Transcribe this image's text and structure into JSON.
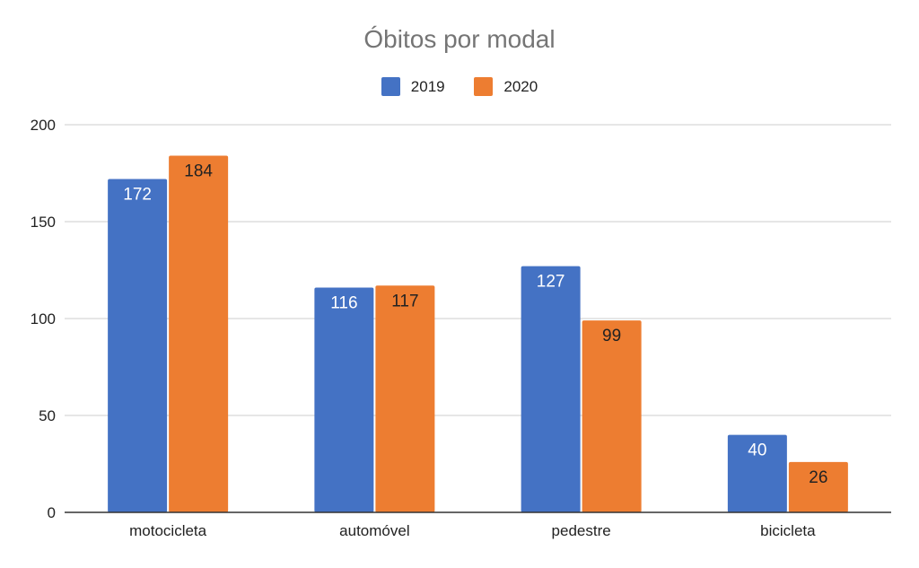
{
  "chart_data": {
    "type": "bar",
    "title": "Óbitos por modal",
    "xlabel": "",
    "ylabel": "",
    "categories": [
      "motocicleta",
      "automóvel",
      "pedestre",
      "bicicleta"
    ],
    "series": [
      {
        "name": "2019",
        "values": [
          172,
          116,
          127,
          40
        ],
        "color": "#4472C4",
        "label_color": "#ffffff"
      },
      {
        "name": "2020",
        "values": [
          184,
          117,
          99,
          26
        ],
        "color": "#ED7D31",
        "label_color": "#222222"
      }
    ],
    "ylim": [
      0,
      200
    ],
    "yticks": [
      0,
      50,
      100,
      150,
      200
    ],
    "grid": true,
    "legend": "top-center",
    "gridline_color": "#cccccc",
    "axis_color": "#333333"
  }
}
